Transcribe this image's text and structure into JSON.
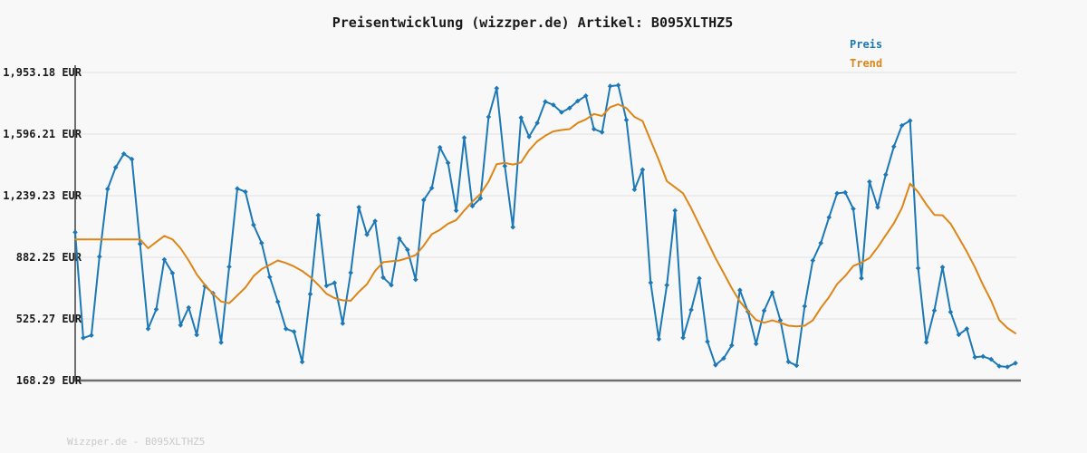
{
  "header": {
    "title": "Preisentwicklung (wizzper.de) Artikel: B095XLTHZ5"
  },
  "legend": {
    "items": [
      {
        "label": "Preis",
        "color": "#1c78b6"
      },
      {
        "label": "Trend",
        "color": "#dd8517"
      }
    ]
  },
  "footer": {
    "text": "Wizzper.de - B095XLTHZ5"
  },
  "colors": {
    "background": "#f8f8f8",
    "gridline": "#e2e2e2",
    "axis": "#6e6e6e",
    "title_text": "#1a1a1a",
    "footer_text": "#c9c9c9",
    "price_line": "#1c78b6",
    "trend_line": "#dd8517"
  },
  "chart_data": {
    "type": "line",
    "title": "Preisentwicklung (wizzper.de) Artikel: B095XLTHZ5",
    "xlabel": "",
    "ylabel": "",
    "grid": true,
    "legend_position": "top-right",
    "x_tick_labels_visible": false,
    "currency": "EUR",
    "ylim": [
      168.29,
      1953.18
    ],
    "yticks": [
      {
        "value": 1953.18,
        "label": "1,953.18 EUR"
      },
      {
        "value": 1596.21,
        "label": "1,596.21 EUR"
      },
      {
        "value": 1239.23,
        "label": "1,239.23 EUR"
      },
      {
        "value": 882.25,
        "label": "882.25 EUR"
      },
      {
        "value": 525.27,
        "label": "525.27 EUR"
      },
      {
        "value": 168.29,
        "label": "168.29 EUR"
      }
    ],
    "series": [
      {
        "name": "Preis",
        "color": "#1c78b6",
        "marker": "diamond",
        "values": [
          1027,
          415,
          430,
          886,
          1278,
          1403,
          1482,
          1451,
          960,
          468,
          581,
          869,
          791,
          489,
          591,
          433,
          716,
          674,
          389,
          827,
          1280,
          1262,
          1070,
          965,
          768,
          625,
          468,
          451,
          276,
          669,
          1126,
          717,
          734,
          499,
          793,
          1172,
          1014,
          1092,
          765,
          721,
          991,
          926,
          753,
          1214,
          1284,
          1519,
          1429,
          1153,
          1575,
          1179,
          1224,
          1696,
          1862,
          1411,
          1057,
          1691,
          1581,
          1661,
          1784,
          1765,
          1722,
          1747,
          1788,
          1818,
          1625,
          1607,
          1874,
          1879,
          1678,
          1275,
          1390,
          735,
          408,
          721,
          1153,
          416,
          578,
          760,
          394,
          258,
          297,
          372,
          692,
          568,
          381,
          573,
          678,
          517,
          277,
          255,
          599,
          864,
          965,
          1114,
          1253,
          1258,
          1163,
          761,
          1320,
          1172,
          1361,
          1524,
          1646,
          1674,
          819,
          390,
          574,
          825,
          565,
          434,
          468,
          303,
          308,
          291,
          252,
          247,
          269
        ]
      },
      {
        "name": "Trend",
        "color": "#dd8517",
        "marker": "none",
        "values": [
          986,
          986,
          986,
          986,
          986,
          986,
          986,
          986,
          986,
          935,
          971,
          1006,
          986,
          935,
          864,
          783,
          722,
          671,
          626,
          616,
          661,
          707,
          773,
          814,
          839,
          864,
          849,
          829,
          803,
          768,
          722,
          671,
          646,
          633,
          631,
          682,
          727,
          803,
          854,
          859,
          864,
          878,
          895,
          950,
          1016,
          1042,
          1077,
          1098,
          1153,
          1204,
          1250,
          1321,
          1422,
          1429,
          1420,
          1432,
          1503,
          1554,
          1587,
          1612,
          1620,
          1625,
          1661,
          1681,
          1713,
          1701,
          1752,
          1769,
          1747,
          1696,
          1672,
          1559,
          1446,
          1323,
          1288,
          1253,
          1166,
          1070,
          974,
          878,
          791,
          704,
          626,
          570,
          519,
          503,
          517,
          503,
          486,
          482,
          486,
          517,
          590,
          651,
          727,
          774,
          832,
          852,
          878,
          940,
          1010,
          1079,
          1169,
          1309,
          1260,
          1189,
          1128,
          1126,
          1077,
          996,
          915,
          824,
          722,
          631,
          519,
          473,
          442
        ]
      }
    ]
  }
}
